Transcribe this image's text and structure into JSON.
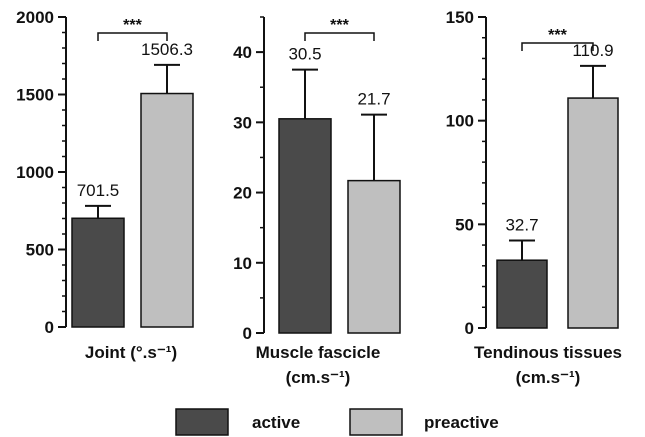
{
  "chart_data": [
    {
      "type": "bar",
      "categories": [
        "active",
        "preactive"
      ],
      "values": [
        701.5,
        1506.3
      ],
      "error_plus": [
        80,
        185
      ],
      "value_labels": [
        "701.5",
        "1506.3"
      ],
      "xlabel": "Joint (°.s⁻¹)",
      "ylim": [
        0,
        2000
      ],
      "major_ticks": [
        "0",
        "500",
        "1000",
        "1500",
        "2000"
      ],
      "minor_tick_step": 100,
      "significance": "***"
    },
    {
      "type": "bar",
      "categories": [
        "active",
        "preactive"
      ],
      "values": [
        30.5,
        21.7
      ],
      "error_plus": [
        7.0,
        9.4
      ],
      "value_labels": [
        "30.5",
        "21.7"
      ],
      "xlabel_lines": [
        "Muscle fascicle",
        "(cm.s⁻¹)"
      ],
      "ylim": [
        0,
        45
      ],
      "major_ticks": [
        "0",
        "10",
        "20",
        "30",
        "40"
      ],
      "minor_tick_step": 5,
      "significance": "***"
    },
    {
      "type": "bar",
      "categories": [
        "active",
        "preactive"
      ],
      "values": [
        32.7,
        110.9
      ],
      "error_plus": [
        9.5,
        15.5
      ],
      "value_labels": [
        "32.7",
        "110.9"
      ],
      "xlabel_lines": [
        "Tendinous tissues",
        "(cm.s⁻¹)"
      ],
      "ylim": [
        0,
        150
      ],
      "major_ticks": [
        "0",
        "50",
        "100",
        "150"
      ],
      "minor_tick_step": 10,
      "significance": "***"
    }
  ],
  "legend": [
    {
      "name": "active",
      "color": "#4a4a4a"
    },
    {
      "name": "preactive",
      "color": "#bfbfbf"
    }
  ],
  "colors": {
    "active": "#4a4a4a",
    "preactive": "#bfbfbf",
    "axis": "#111111"
  }
}
